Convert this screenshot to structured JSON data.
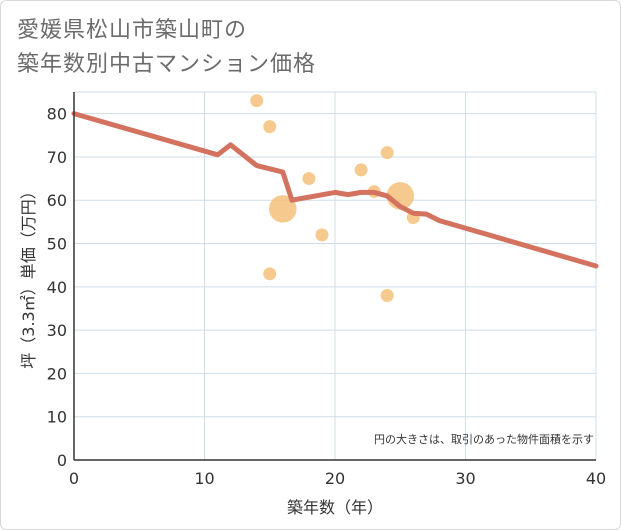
{
  "title_lines": [
    "愛媛県松山市築山町の",
    "築年数別中古マンション価格"
  ],
  "chart_data": {
    "type": "scatter",
    "title": "愛媛県松山市築山町の築年数別中古マンション価格",
    "xlabel": "築年数（年）",
    "ylabel": "坪（3.3㎡）単価（万円）",
    "xlim": [
      0,
      40
    ],
    "ylim": [
      0,
      85
    ],
    "x_ticks": [
      0,
      10,
      20,
      30,
      40
    ],
    "y_ticks": [
      0,
      10,
      20,
      30,
      40,
      50,
      60,
      70,
      80
    ],
    "grid": true,
    "note": "円の大きさは、取引のあった物件面積を示す",
    "colors": {
      "bubble": "#f5c17a",
      "line": "#d47260",
      "grid": "#cfdde8",
      "axis": "#333333"
    },
    "bubbles": [
      {
        "x": 14,
        "y": 83,
        "size": 1
      },
      {
        "x": 15,
        "y": 77,
        "size": 1
      },
      {
        "x": 15,
        "y": 43,
        "size": 1
      },
      {
        "x": 16,
        "y": 58,
        "size": 4.5
      },
      {
        "x": 18,
        "y": 65,
        "size": 1
      },
      {
        "x": 19,
        "y": 52,
        "size": 1
      },
      {
        "x": 22,
        "y": 67,
        "size": 1
      },
      {
        "x": 23,
        "y": 62,
        "size": 1
      },
      {
        "x": 24,
        "y": 71,
        "size": 1
      },
      {
        "x": 24,
        "y": 38,
        "size": 1
      },
      {
        "x": 25,
        "y": 61,
        "size": 4.5
      },
      {
        "x": 26,
        "y": 56,
        "size": 1
      }
    ],
    "trend_line": {
      "x": [
        0,
        11,
        12,
        14,
        16,
        16.7,
        20,
        21,
        22,
        23,
        24,
        25,
        26,
        27,
        28,
        40
      ],
      "y": [
        80,
        70.5,
        72.8,
        68,
        66.5,
        60,
        61.8,
        61.3,
        61.8,
        61.8,
        61,
        58.5,
        57,
        56.8,
        55.3,
        44.8
      ]
    }
  }
}
